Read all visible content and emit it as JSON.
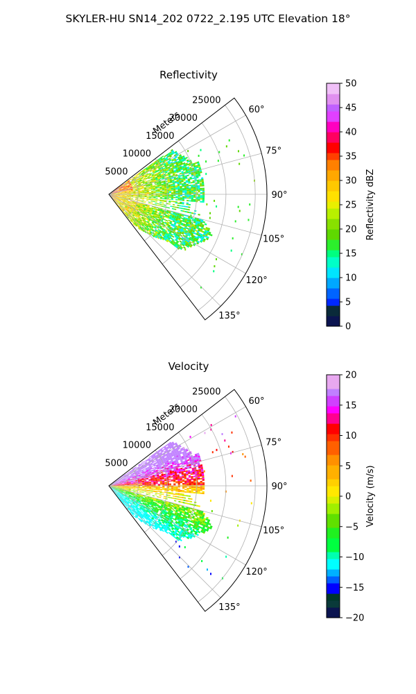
{
  "title": "SKYLER-HU  SN14_202  0722_2.195 UTC Elevation 18°",
  "range_unit_label": "Meters",
  "chart_data": [
    {
      "type": "heatmap",
      "projection": "polar-sector",
      "title": "Reflectivity",
      "azimuth_range_deg": [
        52.5,
        142.5
      ],
      "azimuth_ticks": [
        "60°",
        "75°",
        "90°",
        "105°",
        "120°",
        "135°"
      ],
      "range_max_m": 27000,
      "range_ticks": [
        "5000",
        "10000",
        "15000",
        "20000",
        "25000"
      ],
      "grid": true,
      "colorbar": {
        "label": "Reflectivity dBZ",
        "range": [
          0,
          50
        ],
        "ticks": [
          "0",
          "5",
          "10",
          "15",
          "20",
          "25",
          "30",
          "35",
          "40",
          "45",
          "50"
        ],
        "colormap": "NWSRef"
      },
      "echo_value_range": [
        10,
        40
      ]
    },
    {
      "type": "heatmap",
      "projection": "polar-sector",
      "title": "Velocity",
      "azimuth_range_deg": [
        52.5,
        142.5
      ],
      "azimuth_ticks": [
        "60°",
        "75°",
        "90°",
        "105°",
        "120°",
        "135°"
      ],
      "range_max_m": 27000,
      "range_ticks": [
        "5000",
        "10000",
        "15000",
        "20000",
        "25000"
      ],
      "grid": true,
      "colorbar": {
        "label": "Velocity (m/s)",
        "range": [
          -20,
          20
        ],
        "ticks": [
          "−20",
          "−15",
          "−10",
          "−5",
          "0",
          "5",
          "10",
          "15",
          "20"
        ],
        "colormap": "NWSVel"
      },
      "echo_value_range": [
        -12,
        17
      ]
    }
  ]
}
